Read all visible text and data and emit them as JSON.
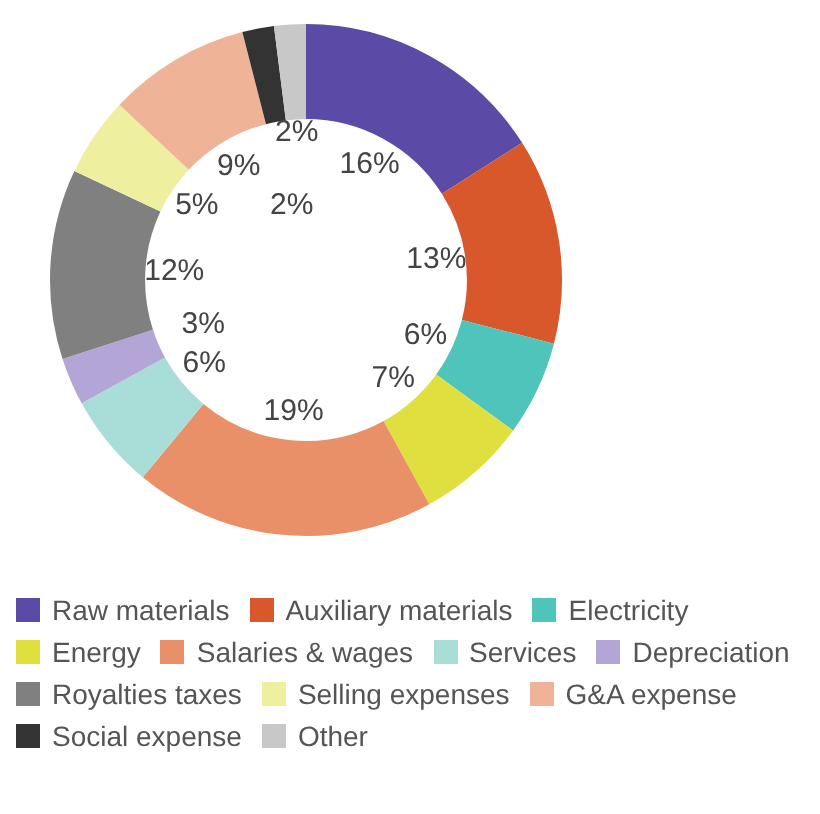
{
  "chart_data": {
    "type": "donut",
    "categories": [
      "Raw materials",
      "Auxiliary materials",
      "Electricity",
      "Energy",
      "Salaries & wages",
      "Services",
      "Depreciation",
      "Royalties taxes",
      "Selling expenses",
      "G&A expense",
      "Social expense",
      "Other"
    ],
    "values": [
      16,
      13,
      6,
      7,
      19,
      6,
      3,
      12,
      5,
      9,
      2,
      2
    ],
    "value_labels": [
      "16%",
      "13%",
      "6%",
      "7%",
      "19%",
      "6%",
      "3%",
      "12%",
      "5%",
      "9%",
      "2%",
      "2%"
    ],
    "colors": [
      "#5b4ba6",
      "#d9582b",
      "#4fc4bb",
      "#dfe03f",
      "#e99068",
      "#a9ddd8",
      "#b3a6d6",
      "#808080",
      "#eef0a0",
      "#efb498",
      "#333333",
      "#c8c8c8"
    ],
    "legend": "bottom"
  }
}
